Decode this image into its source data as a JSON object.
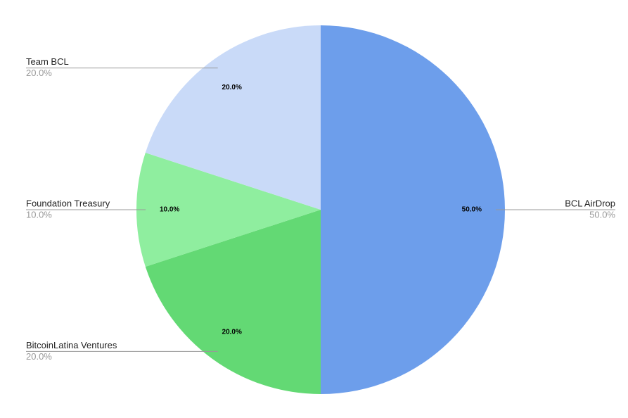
{
  "chart_data": {
    "type": "pie",
    "categories": [
      "BCL AirDrop",
      "BitcoinLatina Ventures",
      "Foundation Treasury",
      "Team BCL"
    ],
    "values": [
      50,
      20,
      10,
      20
    ],
    "value_labels": [
      "50.0%",
      "20.0%",
      "10.0%",
      "20.0%"
    ],
    "colors": [
      "#6d9eeb",
      "#63d974",
      "#8fee9f",
      "#c9daf8"
    ]
  }
}
